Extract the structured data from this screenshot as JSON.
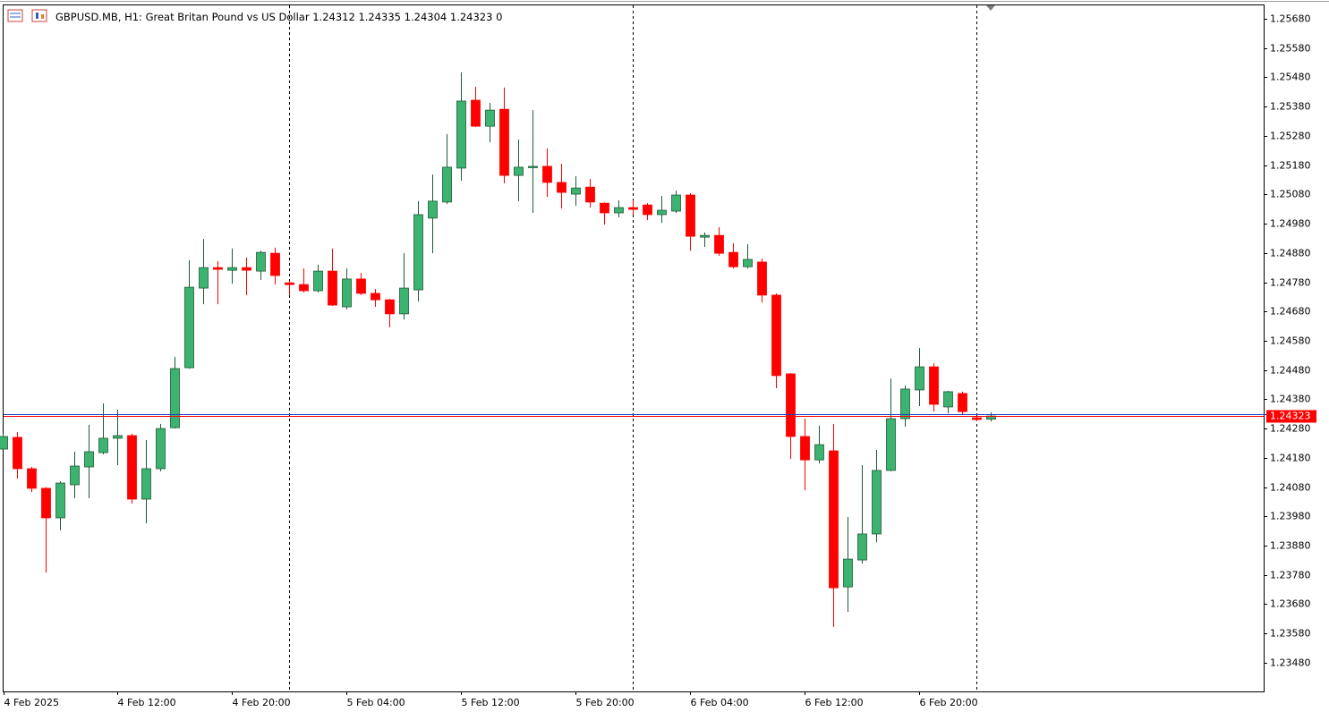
{
  "header": {
    "symbol": "GBPUSD.MB, H1:",
    "description": "Great Britan Pound vs US Dollar",
    "spread": 0
  },
  "chart_data": {
    "type": "candlestick",
    "categories": [
      "4 Feb 2025",
      null,
      null,
      null,
      null,
      null,
      null,
      null,
      "4 Feb 12:00",
      null,
      null,
      null,
      null,
      null,
      null,
      null,
      "4 Feb 20:00",
      null,
      null,
      null,
      null,
      null,
      null,
      null,
      "5 Feb 04:00",
      null,
      null,
      null,
      null,
      null,
      null,
      null,
      "5 Feb 12:00",
      null,
      null,
      null,
      null,
      null,
      null,
      null,
      "5 Feb 20:00",
      null,
      null,
      null,
      null,
      null,
      null,
      null,
      "6 Feb 04:00",
      null,
      null,
      null,
      null,
      null,
      null,
      null,
      "6 Feb 12:00",
      null,
      null,
      null,
      null,
      null,
      null,
      null,
      "6 Feb 20:00",
      null,
      null,
      null,
      null,
      null
    ],
    "open": [
      1.2421,
      1.2425,
      1.24143,
      1.24076,
      1.23975,
      1.24088,
      1.24149,
      1.24198,
      1.24247,
      1.24256,
      1.24039,
      1.24143,
      1.24283,
      1.24488,
      1.2476,
      1.2483,
      1.24821,
      1.2483,
      1.24818,
      1.24879,
      1.24778,
      1.24772,
      1.24751,
      1.24818,
      1.24696,
      1.24791,
      1.24742,
      1.2472,
      1.24672,
      1.24754,
      1.24999,
      1.25054,
      1.2517,
      1.25402,
      1.25313,
      1.25371,
      1.25145,
      1.25173,
      1.25176,
      1.25121,
      1.25081,
      1.25105,
      1.2505,
      1.25017,
      1.25035,
      1.25044,
      1.25011,
      1.25023,
      1.25078,
      1.24934,
      1.2494,
      1.24882,
      1.24833,
      1.24849,
      1.24736,
      1.24467,
      1.24253,
      1.24173,
      1.24204,
      1.23739,
      1.23831,
      1.2392,
      1.24137,
      1.24314,
      1.24412,
      1.24491,
      1.24354,
      1.244,
      1.24317,
      1.24312
    ],
    "high": [
      1.24262,
      1.24268,
      1.24149,
      1.2408,
      1.241,
      1.24201,
      1.24293,
      1.24366,
      1.24345,
      1.24262,
      1.24241,
      1.24296,
      1.24525,
      1.24855,
      1.24928,
      1.24852,
      1.24895,
      1.24864,
      1.24888,
      1.24898,
      1.24785,
      1.24827,
      1.2484,
      1.24895,
      1.24827,
      1.24812,
      1.24757,
      1.24723,
      1.24879,
      1.25057,
      1.25148,
      1.25286,
      1.25497,
      1.25448,
      1.25393,
      1.25445,
      1.25267,
      1.25368,
      1.25237,
      1.25185,
      1.25142,
      1.25133,
      1.25053,
      1.2506,
      1.2506,
      1.2505,
      1.25075,
      1.25093,
      1.25084,
      1.2495,
      1.24968,
      1.24913,
      1.2491,
      1.24861,
      1.24742,
      1.2447,
      1.24314,
      1.2429,
      1.24296,
      1.23978,
      1.24155,
      1.24207,
      1.24451,
      1.24427,
      1.24555,
      1.24503,
      1.24409,
      1.24406,
      1.2432,
      1.24335
    ],
    "low": [
      1.24207,
      1.24109,
      1.24063,
      1.23788,
      1.23932,
      1.24042,
      1.24042,
      1.24192,
      1.24155,
      1.24024,
      1.23956,
      1.24134,
      1.2428,
      1.24485,
      1.24705,
      1.24705,
      1.24775,
      1.24736,
      1.24788,
      1.24772,
      1.24736,
      1.24745,
      1.24745,
      1.24699,
      1.24687,
      1.24736,
      1.24696,
      1.24626,
      1.24653,
      1.24714,
      1.24879,
      1.25047,
      1.25127,
      1.2531,
      1.25258,
      1.25118,
      1.25057,
      1.25017,
      1.25072,
      1.25032,
      1.25041,
      1.25035,
      1.24977,
      1.25002,
      1.25011,
      1.24992,
      1.24983,
      1.25017,
      1.24888,
      1.24901,
      1.2487,
      1.24827,
      1.24827,
      1.24711,
      1.24418,
      1.24176,
      1.24069,
      1.24161,
      1.23602,
      1.23654,
      1.23819,
      1.23892,
      1.24134,
      1.24286,
      1.24357,
      1.24338,
      1.24332,
      1.24329,
      1.24305,
      1.24304
    ],
    "close": [
      1.24253,
      1.24143,
      1.24076,
      1.23975,
      1.24094,
      1.24152,
      1.24201,
      1.24247,
      1.24256,
      1.24039,
      1.24143,
      1.2428,
      1.24485,
      1.24763,
      1.2483,
      1.24824,
      1.2483,
      1.24821,
      1.24882,
      1.24803,
      1.24772,
      1.24751,
      1.24818,
      1.24702,
      1.24791,
      1.24742,
      1.2472,
      1.24672,
      1.2476,
      1.25011,
      1.25057,
      1.25173,
      1.25399,
      1.25313,
      1.25368,
      1.25145,
      1.25173,
      1.25176,
      1.25121,
      1.25087,
      1.25102,
      1.25054,
      1.25017,
      1.25035,
      1.25029,
      1.25011,
      1.25026,
      1.25078,
      1.24937,
      1.2494,
      1.24879,
      1.24833,
      1.24858,
      1.24736,
      1.24461,
      1.24253,
      1.24173,
      1.24225,
      1.23736,
      1.23834,
      1.2392,
      1.24137,
      1.24314,
      1.24415,
      1.24491,
      1.24363,
      1.24406,
      1.24338,
      1.24311,
      1.24323
    ],
    "up_color": "#3cb371",
    "down_color": "#ff0000",
    "ylim": [
      1.23382,
      1.25729
    ],
    "yticks": [
      {
        "value": 1.2568,
        "label": "1.25680"
      },
      {
        "value": 1.2558,
        "label": "1.25580"
      },
      {
        "value": 1.2548,
        "label": "1.25480"
      },
      {
        "value": 1.2538,
        "label": "1.25380"
      },
      {
        "value": 1.2528,
        "label": "1.25280"
      },
      {
        "value": 1.2518,
        "label": "1.25180"
      },
      {
        "value": 1.2508,
        "label": "1.25080"
      },
      {
        "value": 1.2498,
        "label": "1.24980"
      },
      {
        "value": 1.2488,
        "label": "1.24880"
      },
      {
        "value": 1.2478,
        "label": "1.24780"
      },
      {
        "value": 1.2468,
        "label": "1.24680"
      },
      {
        "value": 1.2458,
        "label": "1.24580"
      },
      {
        "value": 1.2448,
        "label": "1.24480"
      },
      {
        "value": 1.2438,
        "label": "1.24380"
      },
      {
        "value": 1.2428,
        "label": "1.24280"
      },
      {
        "value": 1.2418,
        "label": "1.24180"
      },
      {
        "value": 1.2408,
        "label": "1.24080"
      },
      {
        "value": 1.2398,
        "label": "1.23980"
      },
      {
        "value": 1.2388,
        "label": "1.23880"
      },
      {
        "value": 1.2378,
        "label": "1.23780"
      },
      {
        "value": 1.2368,
        "label": "1.23680"
      },
      {
        "value": 1.2358,
        "label": "1.23580"
      },
      {
        "value": 1.2348,
        "label": "1.23480"
      }
    ],
    "grid": false
  }
}
